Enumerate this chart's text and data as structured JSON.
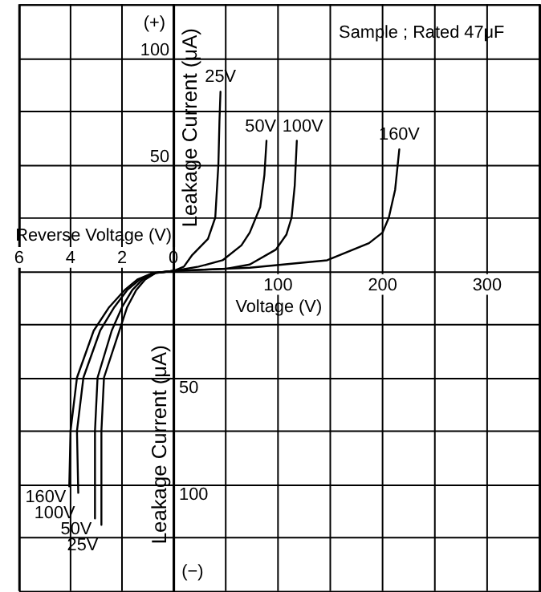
{
  "chart_data": [
    {
      "type": "line",
      "xlabel": "Reverse Voltage (V)",
      "ylabel": "Leakage Current (μA)",
      "annotations": [
        "(−)"
      ],
      "xlim": [
        6,
        0
      ],
      "xticks": [
        6,
        4,
        2,
        0
      ],
      "ylim": [
        150,
        -125
      ],
      "yticks": [
        {
          "value": -125,
          "label": null
        },
        {
          "value": -100,
          "label": null
        },
        {
          "value": -75,
          "label": null
        },
        {
          "value": -50,
          "label": null
        },
        {
          "value": -25,
          "label": null
        },
        {
          "value": 0,
          "label": null
        },
        {
          "value": 25,
          "label": null
        },
        50,
        {
          "value": 75,
          "label": null
        },
        100,
        {
          "value": 125,
          "label": null
        },
        {
          "value": 150,
          "label": null
        }
      ],
      "grid": true,
      "legend": false,
      "marker": "none",
      "line_style": "solid",
      "series": [
        {
          "name": "25V",
          "color": "#000000",
          "x": [
            0,
            0.7,
            1.1,
            1.45,
            1.8,
            2.1,
            2.7,
            2.8,
            2.8
          ],
          "values": [
            0,
            1,
            4,
            9,
            17,
            28,
            50,
            75,
            119
          ]
        },
        {
          "name": "50V",
          "color": "#000000",
          "x": [
            0,
            0.7,
            1.2,
            1.6,
            2.0,
            2.4,
            2.95,
            3.05,
            3.05
          ],
          "values": [
            0,
            1,
            4,
            9,
            17,
            28,
            50,
            75,
            116
          ]
        },
        {
          "name": "100V",
          "color": "#000000",
          "x": [
            0,
            0.8,
            1.3,
            1.8,
            2.3,
            2.85,
            3.5,
            3.75,
            3.7
          ],
          "values": [
            0,
            1,
            4,
            9,
            17,
            28,
            50,
            75,
            104
          ]
        },
        {
          "name": "160V",
          "color": "#000000",
          "x": [
            0,
            0.8,
            1.4,
            1.9,
            2.5,
            3.1,
            3.75,
            4.0,
            4.05
          ],
          "values": [
            0,
            1,
            4,
            9,
            17,
            28,
            50,
            75,
            101
          ]
        }
      ]
    },
    {
      "type": "line",
      "xlabel": "Voltage (V)",
      "ylabel": "Leakage Current (μA)",
      "annotations": [
        "(+)",
        "Sample ; Rated 47μF"
      ],
      "xlim": [
        0,
        350
      ],
      "xticks": [
        {
          "value": 0,
          "label": null
        },
        {
          "value": 50,
          "label": null
        },
        100,
        {
          "value": 150,
          "label": null
        },
        200,
        {
          "value": 250,
          "label": null
        },
        300,
        {
          "value": 350,
          "label": null
        }
      ],
      "ylim": [
        -150,
        125
      ],
      "yticks": [
        {
          "value": -150,
          "label": null
        },
        {
          "value": -125,
          "label": null
        },
        {
          "value": -100,
          "label": null
        },
        {
          "value": -75,
          "label": null
        },
        {
          "value": -50,
          "label": null
        },
        {
          "value": -25,
          "label": null
        },
        {
          "value": 0,
          "label": null
        },
        {
          "value": 25,
          "label": null
        },
        50,
        {
          "value": 75,
          "label": null
        },
        100,
        {
          "value": 125,
          "label": null
        }
      ],
      "grid": true,
      "legend": false,
      "marker": "none",
      "line_style": "solid",
      "series": [
        {
          "name": "25V",
          "color": "#000000",
          "x": [
            0,
            10,
            18,
            33,
            40,
            43,
            44,
            45
          ],
          "values": [
            0,
            2,
            7.5,
            15,
            25,
            50,
            70,
            84
          ]
        },
        {
          "name": "50V",
          "color": "#000000",
          "x": [
            0,
            24,
            47,
            65,
            73,
            83,
            87,
            89
          ],
          "values": [
            0,
            2,
            5,
            12,
            18,
            30,
            45,
            61
          ]
        },
        {
          "name": "100V",
          "color": "#000000",
          "x": [
            0,
            50,
            73,
            98,
            108,
            113,
            116,
            118
          ],
          "values": [
            0,
            1,
            3,
            10,
            17,
            25,
            40,
            61
          ]
        },
        {
          "name": "160V",
          "color": "#000000",
          "x": [
            0,
            73,
            147,
            187,
            200,
            206,
            212,
            216
          ],
          "values": [
            0,
            1.5,
            5,
            13,
            18,
            25,
            38,
            57
          ]
        }
      ]
    }
  ]
}
